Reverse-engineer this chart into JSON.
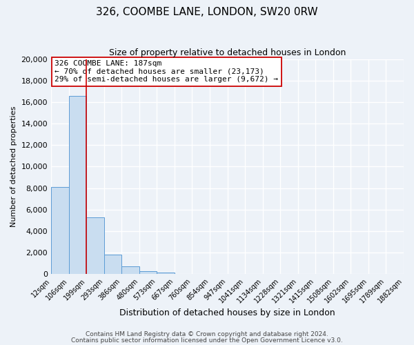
{
  "title": "326, COOMBE LANE, LONDON, SW20 0RW",
  "subtitle": "Size of property relative to detached houses in London",
  "xlabel": "Distribution of detached houses by size in London",
  "ylabel": "Number of detached properties",
  "bin_labels": [
    "12sqm",
    "106sqm",
    "199sqm",
    "293sqm",
    "386sqm",
    "480sqm",
    "573sqm",
    "667sqm",
    "760sqm",
    "854sqm",
    "947sqm",
    "1041sqm",
    "1134sqm",
    "1228sqm",
    "1321sqm",
    "1415sqm",
    "1508sqm",
    "1602sqm",
    "1695sqm",
    "1789sqm",
    "1882sqm"
  ],
  "bar_values": [
    8100,
    16600,
    5300,
    1800,
    750,
    280,
    130,
    0,
    0,
    0,
    0,
    0,
    0,
    0,
    0,
    0,
    0,
    0,
    0,
    0
  ],
  "bar_color": "#c9ddf0",
  "bar_edge_color": "#5b9bd5",
  "ylim": [
    0,
    20000
  ],
  "yticks": [
    0,
    2000,
    4000,
    6000,
    8000,
    10000,
    12000,
    14000,
    16000,
    18000,
    20000
  ],
  "property_line_x": 2.0,
  "property_line_color": "#cc0000",
  "annotation_title": "326 COOMBE LANE: 187sqm",
  "annotation_line1": "← 70% of detached houses are smaller (23,173)",
  "annotation_line2": "29% of semi-detached houses are larger (9,672) →",
  "footer_line1": "Contains HM Land Registry data © Crown copyright and database right 2024.",
  "footer_line2": "Contains public sector information licensed under the Open Government Licence v3.0.",
  "background_color": "#edf2f8",
  "plot_background_color": "#edf2f8",
  "grid_color": "#ffffff",
  "title_fontsize": 11,
  "subtitle_fontsize": 9,
  "ylabel_fontsize": 8,
  "xlabel_fontsize": 9,
  "tick_fontsize": 7,
  "annotation_fontsize": 8,
  "footer_fontsize": 6.5
}
